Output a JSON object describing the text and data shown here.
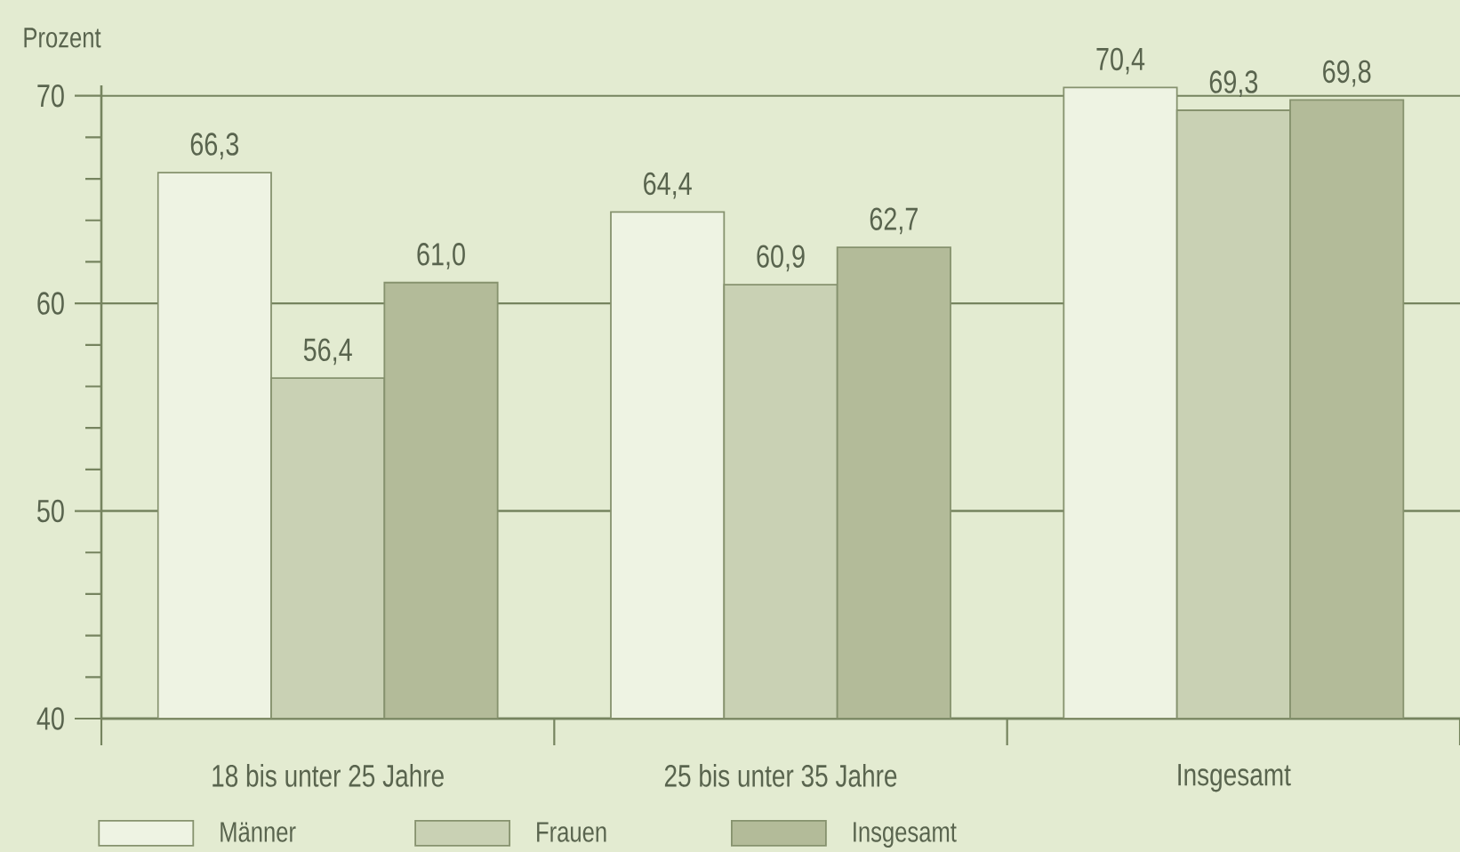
{
  "chart_data": {
    "type": "bar",
    "ylabel": "Prozent",
    "categories": [
      "18 bis unter 25 Jahre",
      "25 bis unter 35 Jahre",
      "Insgesamt"
    ],
    "series": [
      {
        "name": "Männer",
        "color": "#eef3e3",
        "values": [
          66.3,
          64.4,
          70.4
        ],
        "value_labels": [
          "66,3",
          "64,4",
          "70,4"
        ]
      },
      {
        "name": "Frauen",
        "color": "#c9d1b4",
        "values": [
          56.4,
          60.9,
          69.3
        ],
        "value_labels": [
          "56,4",
          "60,9",
          "69,3"
        ]
      },
      {
        "name": "Insgesamt",
        "color": "#b3bb99",
        "values": [
          61.0,
          62.7,
          69.8
        ],
        "value_labels": [
          "61,0",
          "62,7",
          "69,8"
        ]
      }
    ],
    "ylim": [
      40,
      70.5
    ],
    "yticks": [
      40,
      {
        "value": 42,
        "label": null
      },
      {
        "value": 44,
        "label": null
      },
      {
        "value": 46,
        "label": null
      },
      {
        "value": 48,
        "label": null
      },
      50,
      {
        "value": 52,
        "label": null
      },
      {
        "value": 54,
        "label": null
      },
      {
        "value": 56,
        "label": null
      },
      {
        "value": 58,
        "label": null
      },
      60,
      {
        "value": 62,
        "label": null
      },
      {
        "value": 64,
        "label": null
      },
      {
        "value": 66,
        "label": null
      },
      {
        "value": 68,
        "label": null
      },
      70
    ],
    "grid": "y",
    "legend": "bottom"
  }
}
